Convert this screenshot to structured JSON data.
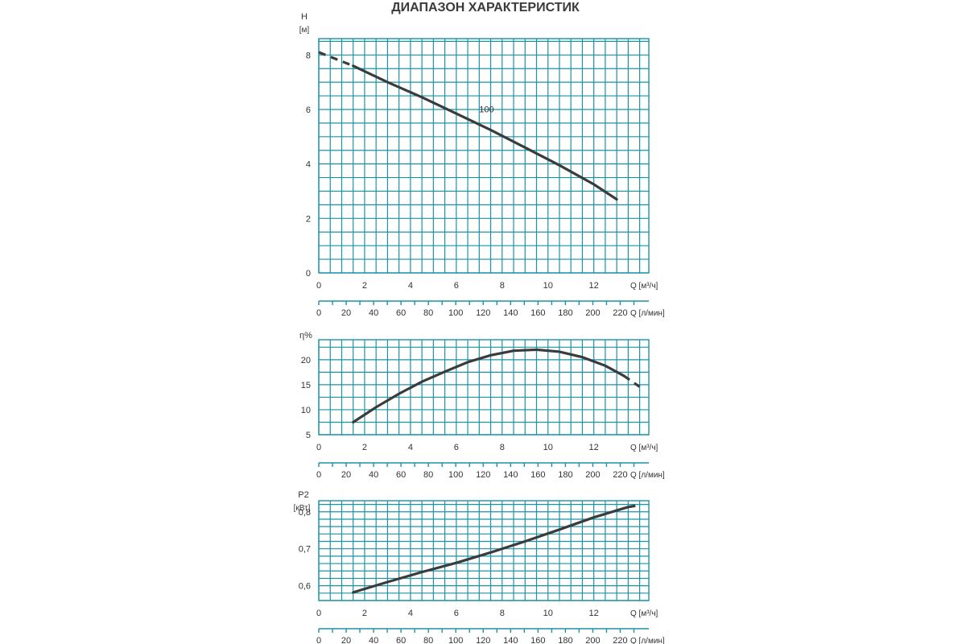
{
  "title": "ДИАПАЗОН ХАРАКТЕРИСТИК",
  "colors": {
    "grid": "#1b93a6",
    "curve": "#3b3b3b",
    "text": "#333333"
  },
  "chart_data": [
    {
      "type": "line",
      "ylabel": "H",
      "yunit": "[м]",
      "xunit": "Q [м³/ч]",
      "xunit2": "Q [л/мин]",
      "xticks": [
        "0",
        "2",
        "4",
        "6",
        "8",
        "10",
        "12"
      ],
      "xticks2": [
        "0",
        "20",
        "40",
        "60",
        "80",
        "100",
        "120",
        "140",
        "160",
        "180",
        "200",
        "220"
      ],
      "yticks": [
        "0",
        "2",
        "4",
        "6",
        "8"
      ],
      "xlim": [
        0,
        14.4
      ],
      "ylim": [
        0,
        8.6
      ],
      "series": [
        {
          "name": "100",
          "x": [
            0,
            1.5,
            3,
            4.5,
            6,
            7.5,
            9,
            10.5,
            12,
            13,
            14
          ],
          "y": [
            8.1,
            7.6,
            7.0,
            6.45,
            5.85,
            5.25,
            4.6,
            3.95,
            3.25,
            2.7,
            2.1
          ],
          "dash_start_x": 1.5,
          "dash_end_x": 13.2
        }
      ]
    },
    {
      "type": "line",
      "ylabel": "η%",
      "xunit": "Q [м³/ч]",
      "xunit2": "Q [л/мин]",
      "xticks": [
        "0",
        "2",
        "4",
        "6",
        "8",
        "10",
        "12"
      ],
      "xticks2": [
        "0",
        "20",
        "40",
        "60",
        "80",
        "100",
        "120",
        "140",
        "160",
        "180",
        "200",
        "220"
      ],
      "yticks": [
        "5",
        "10",
        "15",
        "20"
      ],
      "xlim": [
        0,
        14.4
      ],
      "ylim": [
        5,
        24
      ],
      "series": [
        {
          "x": [
            1.5,
            2.5,
            3.5,
            4.5,
            5.5,
            6.5,
            7.5,
            8.5,
            9.5,
            10.5,
            11.5,
            12.5,
            13.3,
            14
          ],
          "y": [
            7.5,
            10.5,
            13.2,
            15.6,
            17.6,
            19.5,
            20.9,
            21.8,
            22.0,
            21.6,
            20.5,
            18.8,
            16.8,
            14.6
          ],
          "dash_end_x": 13.3
        }
      ]
    },
    {
      "type": "line",
      "ylabel": "P2",
      "yunit": "[кВт]",
      "xunit": "Q [м³/ч]",
      "xunit2": "Q [л/мин]",
      "xticks": [
        "0",
        "2",
        "4",
        "6",
        "8",
        "10",
        "12"
      ],
      "xticks2": [
        "0",
        "20",
        "40",
        "60",
        "80",
        "100",
        "120",
        "140",
        "160",
        "180",
        "200",
        "220"
      ],
      "yticks": [
        "0,6",
        "0,7",
        "0,8"
      ],
      "xlim": [
        0,
        14.4
      ],
      "ylim": [
        0.56,
        0.83
      ],
      "series": [
        {
          "x": [
            1.5,
            3,
            4.5,
            6,
            7.5,
            9,
            10.5,
            12,
            13.5,
            14
          ],
          "y": [
            0.582,
            0.61,
            0.637,
            0.662,
            0.69,
            0.72,
            0.752,
            0.785,
            0.813,
            0.818
          ],
          "dash_end_x": 13.5
        }
      ]
    }
  ]
}
